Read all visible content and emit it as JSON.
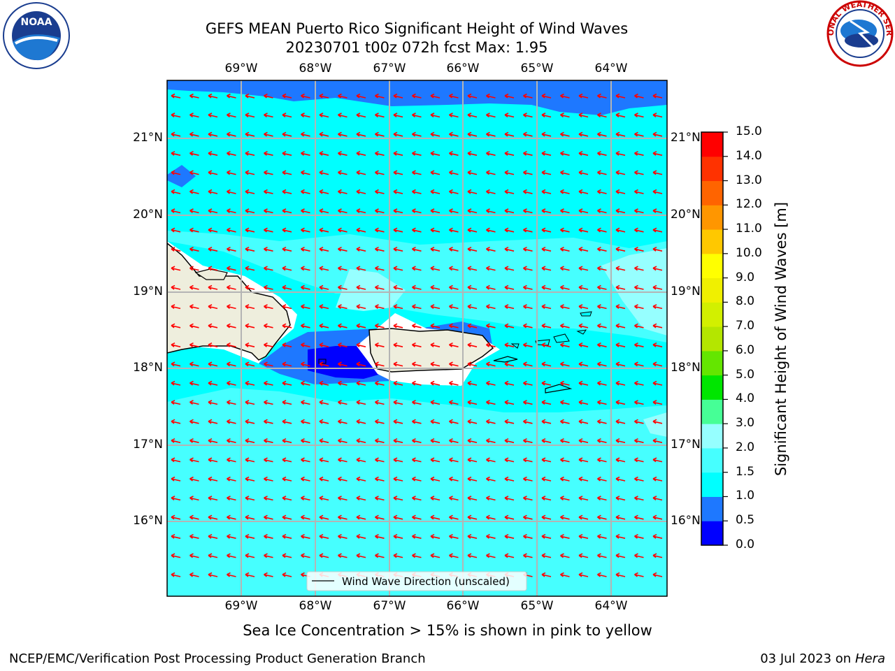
{
  "title_line1": "GEFS MEAN Puerto Rico Significant Height of Wind Waves",
  "title_line2": "20230701 t00z 072h fcst   Max: 1.95",
  "lon_labels": [
    "69°W",
    "68°W",
    "67°W",
    "66°W",
    "65°W",
    "64°W"
  ],
  "lat_labels": [
    "21°N",
    "20°N",
    "19°N",
    "18°N",
    "17°N",
    "16°N"
  ],
  "legend_label": "Wind Wave Direction (unscaled)",
  "colorbar": {
    "label": "Significant Height of Wind Waves [m]",
    "ticks": [
      "0.0",
      "0.5",
      "1.0",
      "1.5",
      "2.0",
      "3.0",
      "4.0",
      "5.0",
      "6.0",
      "7.0",
      "8.0",
      "9.0",
      "10.0",
      "11.0",
      "12.0",
      "13.0",
      "14.0",
      "15.0"
    ],
    "colors": [
      "#0000ff",
      "#1e78ff",
      "#00ffff",
      "#46ffff",
      "#96ffff",
      "#46ff96",
      "#00e600",
      "#64e600",
      "#b4e600",
      "#d2f000",
      "#f0f000",
      "#ffff00",
      "#ffc800",
      "#ff9600",
      "#ff6400",
      "#ff3200",
      "#ff0000"
    ]
  },
  "colors": {
    "ocean_base": "#46ffff",
    "band_1_0_1_5": "#00ffff",
    "band_0_5_1_0": "#1e78ff",
    "band_0_0_0_5": "#0000ff",
    "band_2_0_3_0": "#96ffff",
    "land": "#eeeedd",
    "arrow": "#ff0000"
  },
  "subtitle": "Sea Ice Concentration > 15% is shown in pink to yellow",
  "footer_left": "NCEP/EMC/Verification Post Processing Product Generation Branch",
  "footer_right_prefix": "03 Jul 2023 on ",
  "footer_right_host": "Hera",
  "logos": {
    "left": "NOAA",
    "right": "NATIONAL WEATHER SERVICE"
  }
}
